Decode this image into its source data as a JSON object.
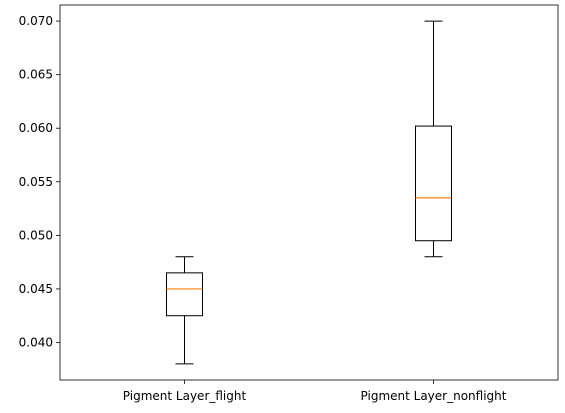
{
  "chart_data": {
    "type": "box",
    "title": "",
    "xlabel": "",
    "ylabel": "",
    "ylim": [
      0.0365,
      0.0715
    ],
    "yticks": [
      "0.040",
      "0.045",
      "0.050",
      "0.055",
      "0.060",
      "0.065",
      "0.070"
    ],
    "categories": [
      "Pigment Layer_flight",
      "Pigment Layer_nonflight"
    ],
    "boxes": [
      {
        "category": "Pigment Layer_flight",
        "whisker_low": 0.038,
        "q1": 0.0425,
        "median": 0.045,
        "q3": 0.0465,
        "whisker_high": 0.048
      },
      {
        "category": "Pigment Layer_nonflight",
        "whisker_low": 0.048,
        "q1": 0.0495,
        "median": 0.0535,
        "q3": 0.0602,
        "whisker_high": 0.07
      }
    ],
    "colors": {
      "box": "#000000",
      "median": "#ff7f0e"
    },
    "grid": false
  }
}
